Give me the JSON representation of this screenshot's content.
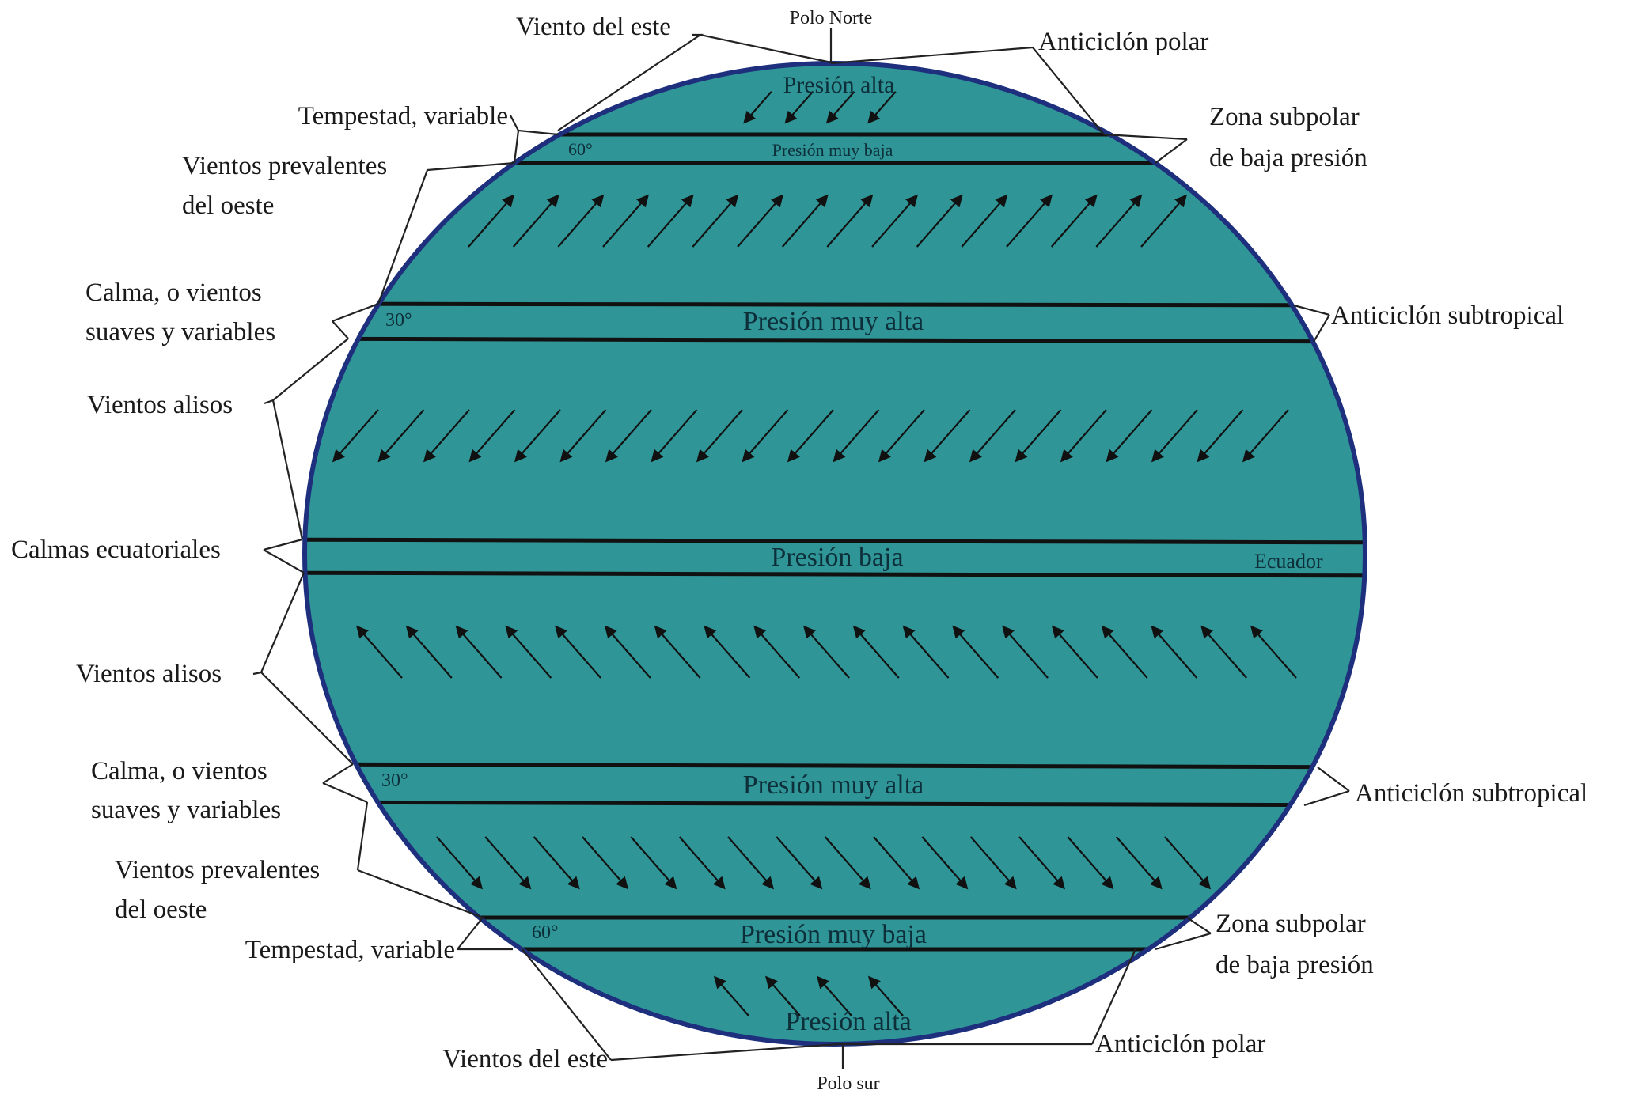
{
  "colors": {
    "globe": "#2f9597",
    "outline": "#1e2f7d",
    "band": "#111111",
    "text": "#1a1a1a"
  },
  "labels": {
    "polo_norte": "Polo Norte",
    "polo_sur": "Polo sur",
    "viento_del_este": "Viento del este",
    "vientos_del_este": "Vientos del este",
    "anticiclon_polar_n": "Anticiclón polar",
    "anticiclon_polar_s": "Anticiclón polar",
    "tempestad_n": "Tempestad, variable",
    "tempestad_s": "Tempestad, variable",
    "zona_subpolar_n": [
      "Zona subpolar",
      "de baja presión"
    ],
    "zona_subpolar_s": [
      "Zona subpolar",
      "de baja presión"
    ],
    "vientos_prevalentes_n": [
      "Vientos prevalentes",
      "del oeste"
    ],
    "vientos_prevalentes_s": [
      "Vientos prevalentes",
      "del oeste"
    ],
    "calma_n": [
      "Calma, o vientos",
      "suaves y variables"
    ],
    "calma_s": [
      "Calma, o vientos",
      "suaves y variables"
    ],
    "anticiclon_subtropical_n": "Anticiclón subtropical",
    "anticiclon_subtropical_s": "Anticiclón subtropical",
    "vientos_alisos_n": "Vientos alisos",
    "vientos_alisos_s": "Vientos alisos",
    "calmas_ecuatoriales": "Calmas ecuatoriales",
    "ecuador": "Ecuador"
  },
  "bands": {
    "presion_alta_n": "Presión alta",
    "presion_muy_baja_n": "Presión muy baja",
    "presion_muy_alta_n": "Presión muy alta",
    "presion_baja": "Presión baja",
    "presion_muy_alta_s": "Presión muy alta",
    "presion_muy_baja_s": "Presión muy baja",
    "presion_alta_s": "Presión alta"
  },
  "latitudes": {
    "lat60_n": "60°",
    "lat30_n": "30°",
    "lat30_s": "30°",
    "lat60_s": "60°"
  },
  "wind_rows": [
    {
      "zone": "polar-easterlies-north",
      "direction": "southwest",
      "count": 4
    },
    {
      "zone": "westerlies-north",
      "direction": "northeast",
      "count": 16
    },
    {
      "zone": "trade-winds-north",
      "direction": "southwest",
      "count": 21
    },
    {
      "zone": "trade-winds-south",
      "direction": "northwest",
      "count": 19
    },
    {
      "zone": "westerlies-south",
      "direction": "southeast",
      "count": 16
    },
    {
      "zone": "polar-easterlies-south",
      "direction": "northwest",
      "count": 4
    }
  ]
}
